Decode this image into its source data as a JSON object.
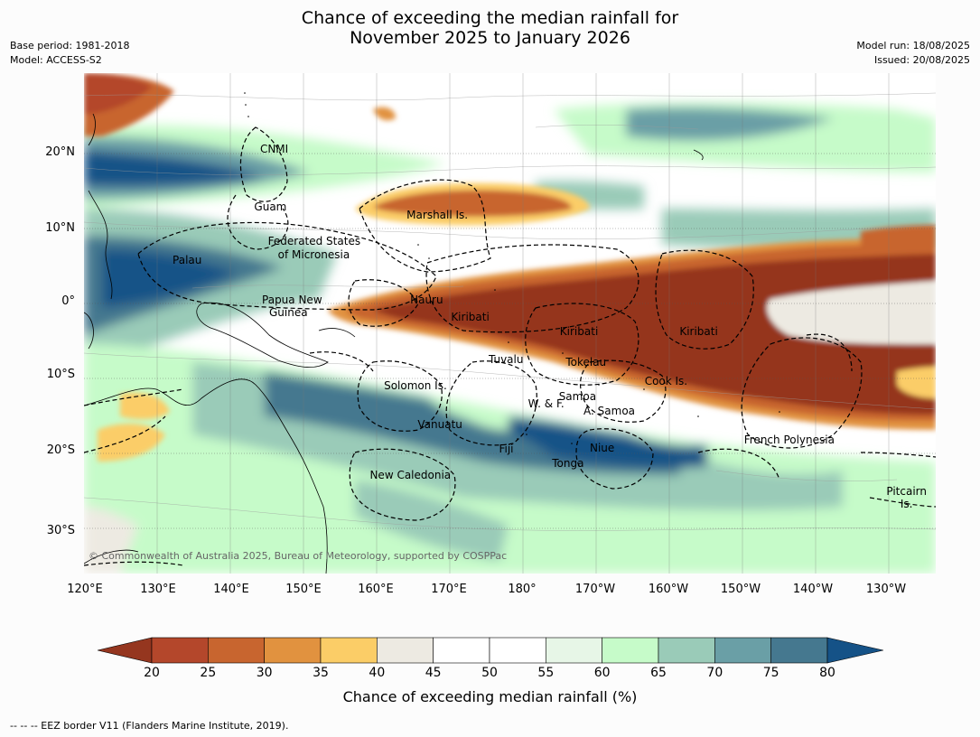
{
  "header": {
    "title_line1": "Chance of exceeding the median rainfall for",
    "title_line2": "November 2025 to January 2026",
    "base_period": "Base period: 1981-2018",
    "model": "Model: ACCESS-S2",
    "model_run": "Model run: 18/08/2025",
    "issued": "Issued: 20/08/2025"
  },
  "axes": {
    "lat_labels": [
      "20°N",
      "10°N",
      "0°",
      "10°S",
      "20°S",
      "30°S"
    ],
    "lon_labels": [
      "120°E",
      "130°E",
      "140°E",
      "150°E",
      "160°E",
      "170°E",
      "180°",
      "170°W",
      "160°W",
      "150°W",
      "140°W",
      "130°W"
    ]
  },
  "regions": [
    {
      "name": "CNMI",
      "lon": 145.0,
      "lat": 20.0
    },
    {
      "name": "Guam",
      "lon": 144.5,
      "lat": 12.3
    },
    {
      "name": "Marshall Is.",
      "lon": 167.5,
      "lat": 11.2
    },
    {
      "name": "Federated States",
      "lon": 150.5,
      "lat": 7.7
    },
    {
      "name": "of Micronesia",
      "lon": 150.5,
      "lat": 6.0
    },
    {
      "name": "Palau",
      "lon": 133.0,
      "lat": 5.2
    },
    {
      "name": "Nauru",
      "lon": 166.0,
      "lat": 0.0
    },
    {
      "name": "Papua New",
      "lon": 147.5,
      "lat": 0.0
    },
    {
      "name": "Guinea",
      "lon": 147.0,
      "lat": -1.7
    },
    {
      "name": "Kiribati",
      "lon": 172.0,
      "lat": -2.3
    },
    {
      "name": "Kiribati",
      "lon": -173.0,
      "lat": -4.3
    },
    {
      "name": "Kiribati",
      "lon": -156.5,
      "lat": -4.3
    },
    {
      "name": "Tuvalu",
      "lon": 177.0,
      "lat": -8.0
    },
    {
      "name": "Tokelau",
      "lon": -172.0,
      "lat": -8.3
    },
    {
      "name": "Cook Is.",
      "lon": -161.0,
      "lat": -10.8
    },
    {
      "name": "Solomon Is.",
      "lon": 164.5,
      "lat": -11.5
    },
    {
      "name": "Samoa",
      "lon": -173.2,
      "lat": -12.9
    },
    {
      "name": "W. & F.",
      "lon": -177.5,
      "lat": -13.8
    },
    {
      "name": "A. Samoa",
      "lon": -168.8,
      "lat": -14.8
    },
    {
      "name": "Vanuatu",
      "lon": 167.9,
      "lat": -16.6
    },
    {
      "name": "French Polynesia",
      "lon": -144.0,
      "lat": -18.6
    },
    {
      "name": "Fiji",
      "lon": 177.0,
      "lat": -19.8
    },
    {
      "name": "Niue",
      "lon": -169.8,
      "lat": -19.7
    },
    {
      "name": "Tonga",
      "lon": -174.5,
      "lat": -21.8
    },
    {
      "name": "New Caledonia",
      "lon": 163.8,
      "lat": -23.3
    },
    {
      "name": "Pitcairn",
      "lon": -127.8,
      "lat": -25.5
    },
    {
      "name": "Is.",
      "lon": -127.8,
      "lat": -27.2
    }
  ],
  "copyright": "© Commonwealth of Australia 2025, Bureau of Meteorology, supported by COSPPac",
  "colorbar": {
    "label": "Chance of exceeding median rainfall (%)",
    "ticks": [
      "20",
      "25",
      "30",
      "35",
      "40",
      "45",
      "50",
      "55",
      "60",
      "65",
      "70",
      "75",
      "80"
    ],
    "colors": [
      "#b4472b",
      "#c8652f",
      "#e1923f",
      "#fbcd67",
      "#edeae2",
      "#ffffff",
      "#ffffff",
      "#e7f6e7",
      "#c6fbc9",
      "#9acbb8",
      "#6a9fa6",
      "#45788f"
    ],
    "under_color": "#95361f",
    "over_color": "#155287"
  },
  "footnote": "-- -- -- EEZ border V11 (Flanders Marine Institute, 2019)."
}
